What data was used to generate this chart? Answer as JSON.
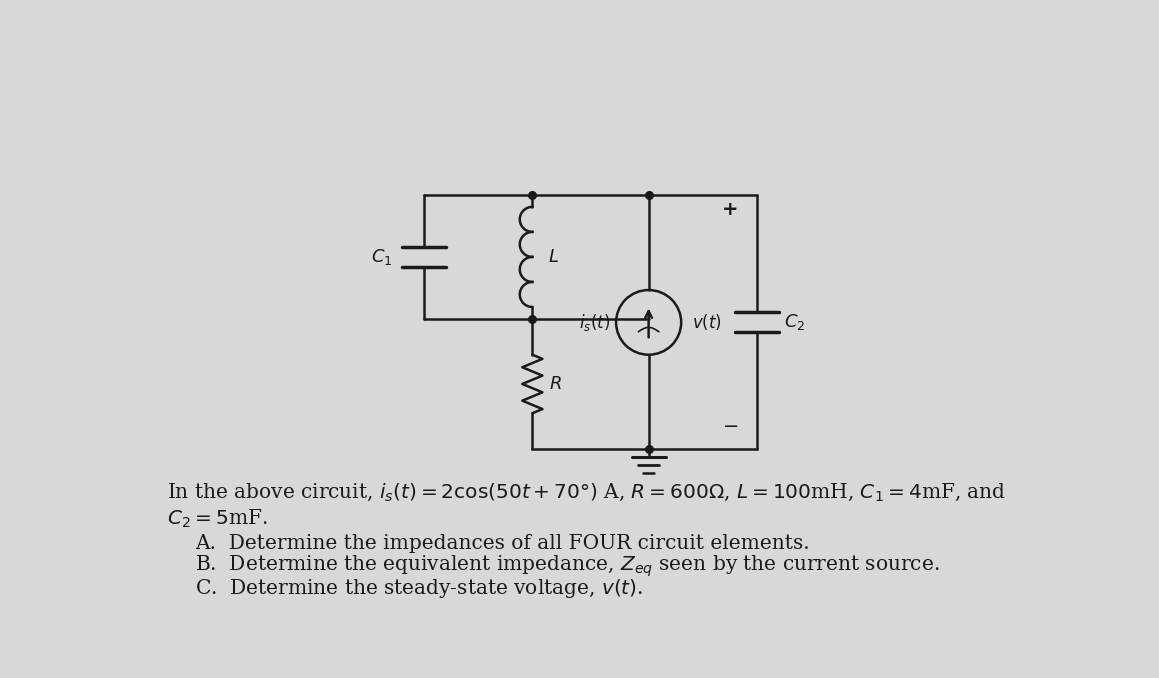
{
  "bg_color": "#d8d8d8",
  "text_color": "#1a1a1a",
  "line_color": "#1a1a1a",
  "fig_width": 11.59,
  "fig_height": 6.78,
  "dpi": 100
}
